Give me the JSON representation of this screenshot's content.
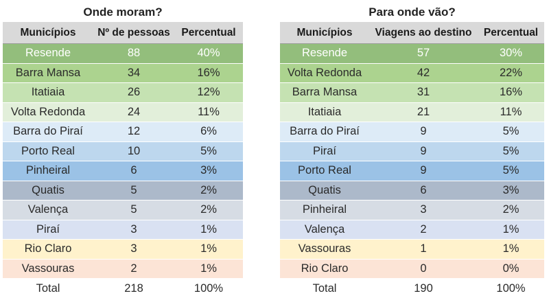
{
  "left": {
    "title": "Onde moram?",
    "headers": [
      "Municípios",
      "Nº de pessoas",
      "Percentual"
    ],
    "rows": [
      {
        "municipio": "Resende",
        "valor": "88",
        "percentual": "40%",
        "color": "#93be7c"
      },
      {
        "municipio": "Barra Mansa",
        "valor": "34",
        "percentual": "16%",
        "color": "#acd38f"
      },
      {
        "municipio": "Itatiaia",
        "valor": "26",
        "percentual": "12%",
        "color": "#c5e2b2"
      },
      {
        "municipio": "Volta Redonda",
        "valor": "24",
        "percentual": "11%",
        "color": "#e2efda"
      },
      {
        "municipio": "Barra do Piraí",
        "valor": "12",
        "percentual": "6%",
        "color": "#ddebf7"
      },
      {
        "municipio": "Porto Real",
        "valor": "10",
        "percentual": "5%",
        "color": "#bdd7ee"
      },
      {
        "municipio": "Pinheiral",
        "valor": "6",
        "percentual": "3%",
        "color": "#9bc2e6"
      },
      {
        "municipio": "Quatis",
        "valor": "5",
        "percentual": "2%",
        "color": "#acb9ca"
      },
      {
        "municipio": "Valença",
        "valor": "5",
        "percentual": "2%",
        "color": "#d6dce4"
      },
      {
        "municipio": "Piraí",
        "valor": "3",
        "percentual": "1%",
        "color": "#d9e1f2"
      },
      {
        "municipio": "Rio Claro",
        "valor": "3",
        "percentual": "1%",
        "color": "#fff2cc"
      },
      {
        "municipio": "Vassouras",
        "valor": "2",
        "percentual": "1%",
        "color": "#fce4d6"
      }
    ],
    "total": {
      "label": "Total",
      "valor": "218",
      "percentual": "100%"
    }
  },
  "right": {
    "title": "Para onde vão?",
    "headers": [
      "Municípios",
      "Viagens ao destino",
      "Percentual"
    ],
    "rows": [
      {
        "municipio": "Resende",
        "valor": "57",
        "percentual": "30%",
        "color": "#93be7c"
      },
      {
        "municipio": "Volta Redonda",
        "valor": "42",
        "percentual": "22%",
        "color": "#acd38f"
      },
      {
        "municipio": "Barra Mansa",
        "valor": "31",
        "percentual": "16%",
        "color": "#c5e2b2"
      },
      {
        "municipio": "Itatiaia",
        "valor": "21",
        "percentual": "11%",
        "color": "#e2efda"
      },
      {
        "municipio": "Barra do Piraí",
        "valor": "9",
        "percentual": "5%",
        "color": "#ddebf7"
      },
      {
        "municipio": "Piraí",
        "valor": "9",
        "percentual": "5%",
        "color": "#bdd7ee"
      },
      {
        "municipio": "Porto Real",
        "valor": "9",
        "percentual": "5%",
        "color": "#9bc2e6"
      },
      {
        "municipio": "Quatis",
        "valor": "6",
        "percentual": "3%",
        "color": "#acb9ca"
      },
      {
        "municipio": "Pinheiral",
        "valor": "3",
        "percentual": "2%",
        "color": "#d6dce4"
      },
      {
        "municipio": "Valença",
        "valor": "2",
        "percentual": "1%",
        "color": "#d9e1f2"
      },
      {
        "municipio": "Vassouras",
        "valor": "1",
        "percentual": "1%",
        "color": "#fff2cc"
      },
      {
        "municipio": "Rio Claro",
        "valor": "0",
        "percentual": "0%",
        "color": "#fce4d6"
      }
    ],
    "total": {
      "label": "Total",
      "valor": "190",
      "percentual": "100%"
    }
  }
}
